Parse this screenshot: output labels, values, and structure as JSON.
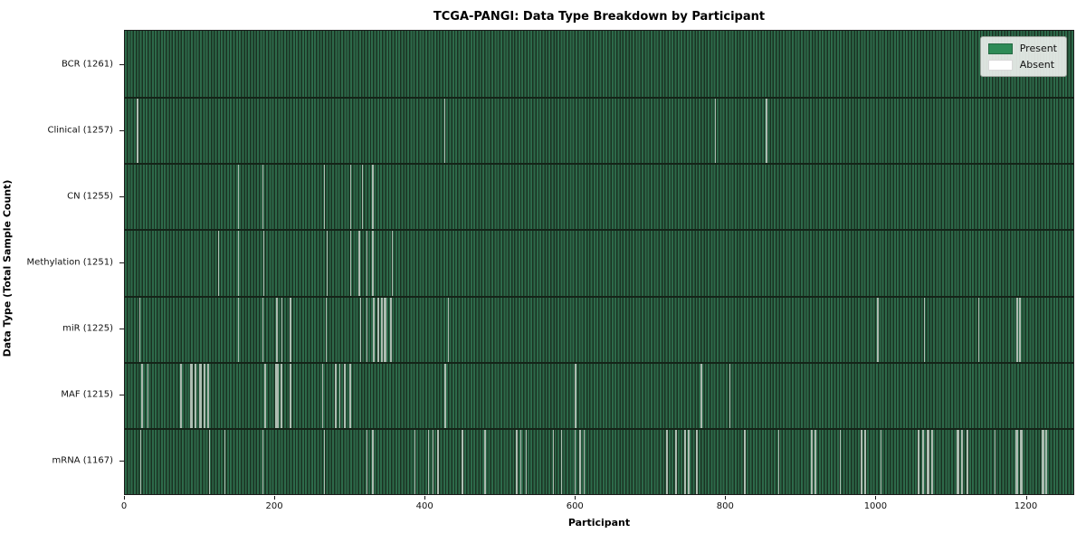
{
  "chart_data": {
    "type": "heatmap",
    "title": "TCGA-PANGI: Data Type Breakdown by Participant",
    "xlabel": "Participant",
    "ylabel": "Data Type (Total Sample Count)",
    "legend": [
      "Present",
      "Absent"
    ],
    "legend_position": "upper right",
    "x_max": 1262,
    "x_ticks": [
      0,
      200,
      400,
      600,
      800,
      1000,
      1200
    ],
    "colors": {
      "present": "#2e8b57",
      "present_stripe_light": "#2d6a4a",
      "present_stripe_dark": "#1a3222",
      "absent": "#ffffff",
      "absent_line_rendered": "#ccd3cc"
    },
    "rows": [
      {
        "name": "bcr",
        "label": "BCR (1261)",
        "data_type": "BCR",
        "total_samples": 1261,
        "absent_count": 0,
        "absent_runs": []
      },
      {
        "name": "clinical",
        "label": "Clinical (1257)",
        "data_type": "Clinical",
        "total_samples": 1257,
        "absent_count": 4,
        "absent_runs": [
          [
            16,
            1
          ],
          [
            425,
            1
          ],
          [
            785,
            1
          ],
          [
            853,
            1
          ]
        ]
      },
      {
        "name": "cn",
        "label": "CN (1255)",
        "data_type": "CN",
        "total_samples": 1255,
        "absent_count": 6,
        "absent_runs": [
          [
            150,
            1
          ],
          [
            183,
            1
          ],
          [
            265,
            1
          ],
          [
            300,
            1
          ],
          [
            315,
            1
          ],
          [
            329,
            1
          ]
        ]
      },
      {
        "name": "methylation",
        "label": "Methylation (1251)",
        "data_type": "Methylation",
        "total_samples": 1251,
        "absent_count": 10,
        "absent_runs": [
          [
            124,
            1
          ],
          [
            150,
            1
          ],
          [
            184,
            1
          ],
          [
            268,
            1
          ],
          [
            300,
            1
          ],
          [
            311,
            1
          ],
          [
            321,
            2
          ],
          [
            329,
            1
          ],
          [
            355,
            1
          ]
        ]
      },
      {
        "name": "mir",
        "label": "miR (1225)",
        "data_type": "miR",
        "total_samples": 1225,
        "absent_count": 36,
        "absent_runs": [
          [
            19,
            1
          ],
          [
            150,
            1
          ],
          [
            183,
            1
          ],
          [
            201,
            3
          ],
          [
            208,
            2
          ],
          [
            219,
            2
          ],
          [
            267,
            1
          ],
          [
            313,
            1
          ],
          [
            321,
            2
          ],
          [
            330,
            2
          ],
          [
            336,
            2
          ],
          [
            341,
            2
          ],
          [
            345,
            3
          ],
          [
            353,
            2
          ],
          [
            430,
            1
          ],
          [
            1001,
            2
          ],
          [
            1063,
            2
          ],
          [
            1135,
            2
          ],
          [
            1186,
            2
          ],
          [
            1190,
            2
          ]
        ]
      },
      {
        "name": "maf",
        "label": "MAF (1215)",
        "data_type": "MAF",
        "total_samples": 1215,
        "absent_count": 46,
        "absent_runs": [
          [
            22,
            1
          ],
          [
            30,
            1
          ],
          [
            74,
            1
          ],
          [
            87,
            3
          ],
          [
            93,
            2
          ],
          [
            99,
            3
          ],
          [
            105,
            2
          ],
          [
            110,
            2
          ],
          [
            186,
            2
          ],
          [
            200,
            5
          ],
          [
            207,
            2
          ],
          [
            219,
            3
          ],
          [
            262,
            2
          ],
          [
            279,
            3
          ],
          [
            285,
            2
          ],
          [
            291,
            3
          ],
          [
            299,
            2
          ],
          [
            425,
            2
          ],
          [
            599,
            1
          ],
          [
            766,
            2
          ],
          [
            804,
            2
          ]
        ]
      },
      {
        "name": "mrna",
        "label": "mRNA (1167)",
        "data_type": "mRNA",
        "total_samples": 1167,
        "absent_count": 94,
        "absent_runs": [
          [
            20,
            1
          ],
          [
            112,
            1
          ],
          [
            132,
            1
          ],
          [
            183,
            1
          ],
          [
            265,
            1
          ],
          [
            321,
            1
          ],
          [
            329,
            1
          ],
          [
            385,
            2
          ],
          [
            403,
            2
          ],
          [
            409,
            2
          ],
          [
            415,
            3
          ],
          [
            448,
            2
          ],
          [
            478,
            2
          ],
          [
            520,
            3
          ],
          [
            526,
            2
          ],
          [
            533,
            2
          ],
          [
            569,
            2
          ],
          [
            580,
            2
          ],
          [
            598,
            2
          ],
          [
            605,
            2
          ],
          [
            610,
            2
          ],
          [
            720,
            2
          ],
          [
            732,
            2
          ],
          [
            744,
            3
          ],
          [
            749,
            2
          ],
          [
            760,
            2
          ],
          [
            824,
            2
          ],
          [
            869,
            2
          ],
          [
            913,
            2
          ],
          [
            918,
            2
          ],
          [
            951,
            2
          ],
          [
            979,
            3
          ],
          [
            984,
            2
          ],
          [
            1005,
            2
          ],
          [
            1055,
            2
          ],
          [
            1061,
            2
          ],
          [
            1067,
            3
          ],
          [
            1073,
            2
          ],
          [
            1107,
            3
          ],
          [
            1113,
            2
          ],
          [
            1120,
            2
          ],
          [
            1157,
            2
          ],
          [
            1185,
            3
          ],
          [
            1191,
            3
          ],
          [
            1220,
            3
          ],
          [
            1225,
            2
          ]
        ]
      }
    ]
  }
}
